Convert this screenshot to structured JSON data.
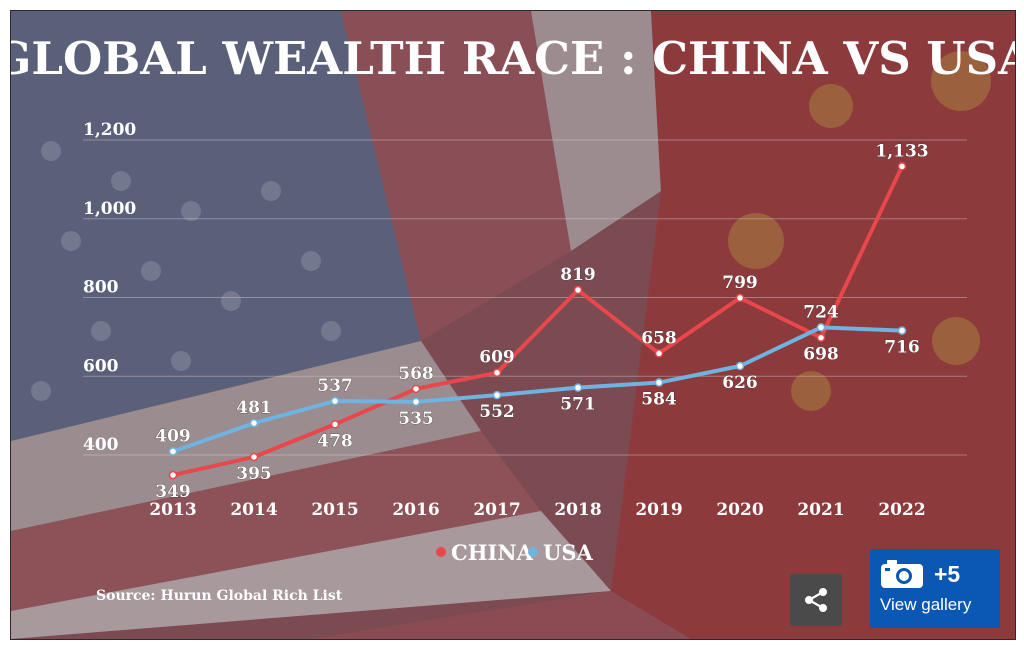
{
  "colors": {
    "china": "#e8474b",
    "usa": "#6fb3e0",
    "gallery_button": "#0b57b4",
    "share_button": "#4a4a4a"
  },
  "chart_data": {
    "type": "line",
    "title": "GLOBAL WEALTH RACE : CHINA VS USA",
    "x": [
      "2013",
      "2014",
      "2015",
      "2016",
      "2017",
      "2018",
      "2019",
      "2020",
      "2021",
      "2022"
    ],
    "series": [
      {
        "name": "CHINA",
        "values": [
          349,
          395,
          478,
          568,
          609,
          819,
          658,
          799,
          698,
          1133
        ],
        "labels": [
          "349",
          "395",
          "478",
          "568",
          "609",
          "819",
          "658",
          "799",
          "698",
          "1,133"
        ]
      },
      {
        "name": "USA",
        "values": [
          409,
          481,
          537,
          535,
          552,
          571,
          584,
          626,
          724,
          716
        ],
        "labels": [
          "409",
          "481",
          "537",
          "535",
          "552",
          "571",
          "584",
          "626",
          "724",
          "716"
        ]
      }
    ],
    "yticks": [
      400,
      600,
      800,
      1000,
      1200
    ],
    "ytick_labels": [
      "400",
      "600",
      "800",
      "1,000",
      "1,200"
    ],
    "ylim": [
      300,
      1240
    ],
    "grid": true,
    "legend_position": "bottom-center",
    "source": "Source: Hurun Global Rich List"
  },
  "gallery": {
    "count": "+5",
    "label": "View gallery",
    "icon": "camera-icon"
  },
  "share": {
    "icon": "share-icon"
  }
}
